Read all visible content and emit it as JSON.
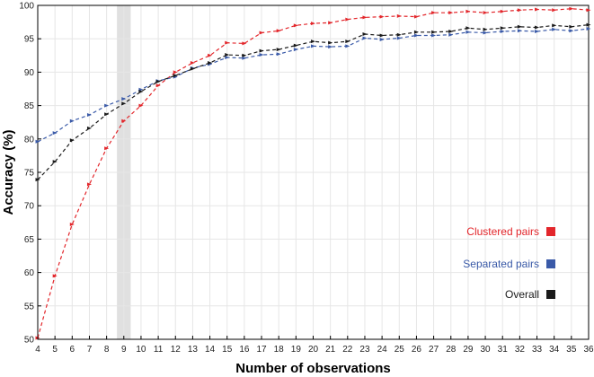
{
  "chart_data": {
    "type": "line",
    "xlabel": "Number of observations",
    "ylabel": "Accuracy (%)",
    "xlim": [
      4,
      36
    ],
    "ylim": [
      50,
      100
    ],
    "x_ticks": [
      "4",
      "5",
      "6",
      "7",
      "8",
      "9",
      "10",
      "11",
      "12",
      "13",
      "14",
      "15",
      "16",
      "17",
      "18",
      "19",
      "20",
      "21",
      "22",
      "23",
      "24",
      "25",
      "26",
      "27",
      "28",
      "29",
      "30",
      "31",
      "32",
      "33",
      "34",
      "35",
      "36"
    ],
    "y_ticks": [
      "50",
      "55",
      "60",
      "65",
      "70",
      "75",
      "80",
      "85",
      "90",
      "95",
      "100"
    ],
    "grid": true,
    "legend_placement": "right",
    "highlight_band": {
      "x_from": 8.6,
      "x_to": 9.4,
      "color": "#e0e0e0"
    },
    "x": [
      4,
      5,
      6,
      7,
      8,
      9,
      10,
      11,
      12,
      13,
      14,
      15,
      16,
      17,
      18,
      19,
      20,
      21,
      22,
      23,
      24,
      25,
      26,
      27,
      28,
      29,
      30,
      31,
      32,
      33,
      34,
      35,
      36
    ],
    "series": [
      {
        "name": "Clustered pairs",
        "color": "#e3262b",
        "values": [
          50.2,
          59.5,
          67.2,
          73.2,
          78.6,
          82.7,
          85.0,
          88.0,
          90.0,
          91.4,
          92.5,
          94.4,
          94.3,
          95.9,
          96.2,
          97.0,
          97.3,
          97.4,
          97.9,
          98.2,
          98.3,
          98.4,
          98.3,
          98.9,
          98.9,
          99.1,
          98.9,
          99.1,
          99.3,
          99.4,
          99.3,
          99.5,
          99.3
        ]
      },
      {
        "name": "Separated pairs",
        "color": "#3a5aa8",
        "values": [
          79.6,
          80.9,
          82.7,
          83.6,
          85.0,
          86.0,
          87.4,
          88.7,
          89.3,
          90.6,
          91.2,
          92.2,
          92.1,
          92.6,
          92.7,
          93.4,
          93.9,
          93.8,
          93.9,
          95.1,
          94.9,
          95.1,
          95.5,
          95.5,
          95.6,
          96.0,
          95.9,
          96.1,
          96.2,
          96.1,
          96.4,
          96.2,
          96.5
        ]
      },
      {
        "name": "Overall",
        "color": "#1a1a1a",
        "values": [
          73.9,
          76.6,
          79.8,
          81.6,
          83.7,
          85.3,
          87.1,
          88.6,
          89.5,
          90.5,
          91.4,
          92.6,
          92.5,
          93.2,
          93.4,
          94.0,
          94.6,
          94.4,
          94.6,
          95.7,
          95.5,
          95.6,
          96.0,
          96.0,
          96.1,
          96.6,
          96.4,
          96.6,
          96.8,
          96.7,
          97.0,
          96.8,
          97.1
        ]
      }
    ]
  }
}
